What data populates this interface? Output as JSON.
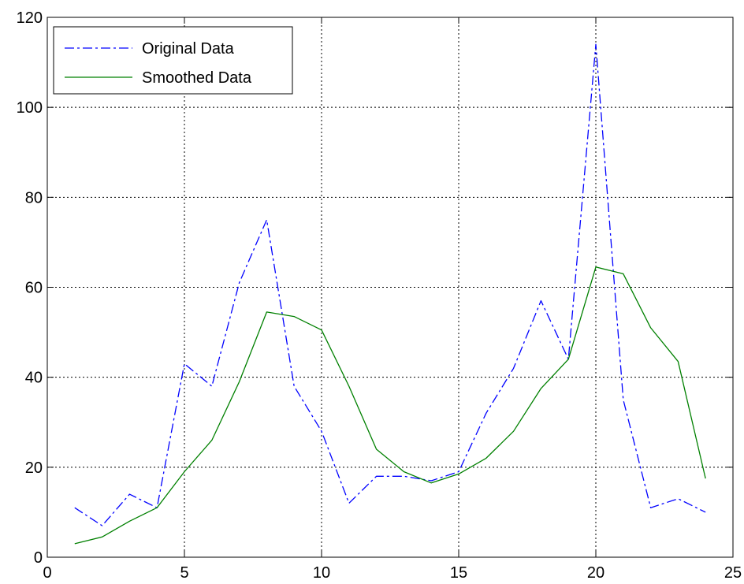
{
  "chart_data": {
    "type": "line",
    "title": "",
    "xlabel": "",
    "ylabel": "",
    "xlim": [
      0,
      25
    ],
    "ylim": [
      0,
      120
    ],
    "xticks": [
      0,
      5,
      10,
      15,
      20,
      25
    ],
    "yticks": [
      0,
      20,
      40,
      60,
      80,
      100,
      120
    ],
    "grid": true,
    "grid_style": "dotted",
    "legend_position": "top-left",
    "x": [
      1,
      2,
      3,
      4,
      5,
      6,
      7,
      8,
      9,
      10,
      11,
      12,
      13,
      14,
      15,
      16,
      17,
      18,
      19,
      20,
      21,
      22,
      23,
      24
    ],
    "series": [
      {
        "name": "Original Data",
        "color": "#0000ff",
        "line_style": "dash-dot",
        "values": [
          11,
          7,
          14,
          11,
          43,
          38,
          61,
          75,
          38,
          28,
          12,
          18,
          18,
          17,
          19,
          32,
          42,
          57,
          44,
          114,
          35,
          11,
          13,
          10
        ]
      },
      {
        "name": "Smoothed Data",
        "color": "#008000",
        "line_style": "solid",
        "values": [
          3,
          4.5,
          8,
          11,
          19,
          26,
          39,
          54.5,
          53.5,
          50.5,
          38,
          24,
          19,
          16.5,
          18.5,
          22,
          28,
          37.5,
          44,
          64.5,
          63,
          51,
          43.5,
          17.5
        ]
      }
    ]
  }
}
